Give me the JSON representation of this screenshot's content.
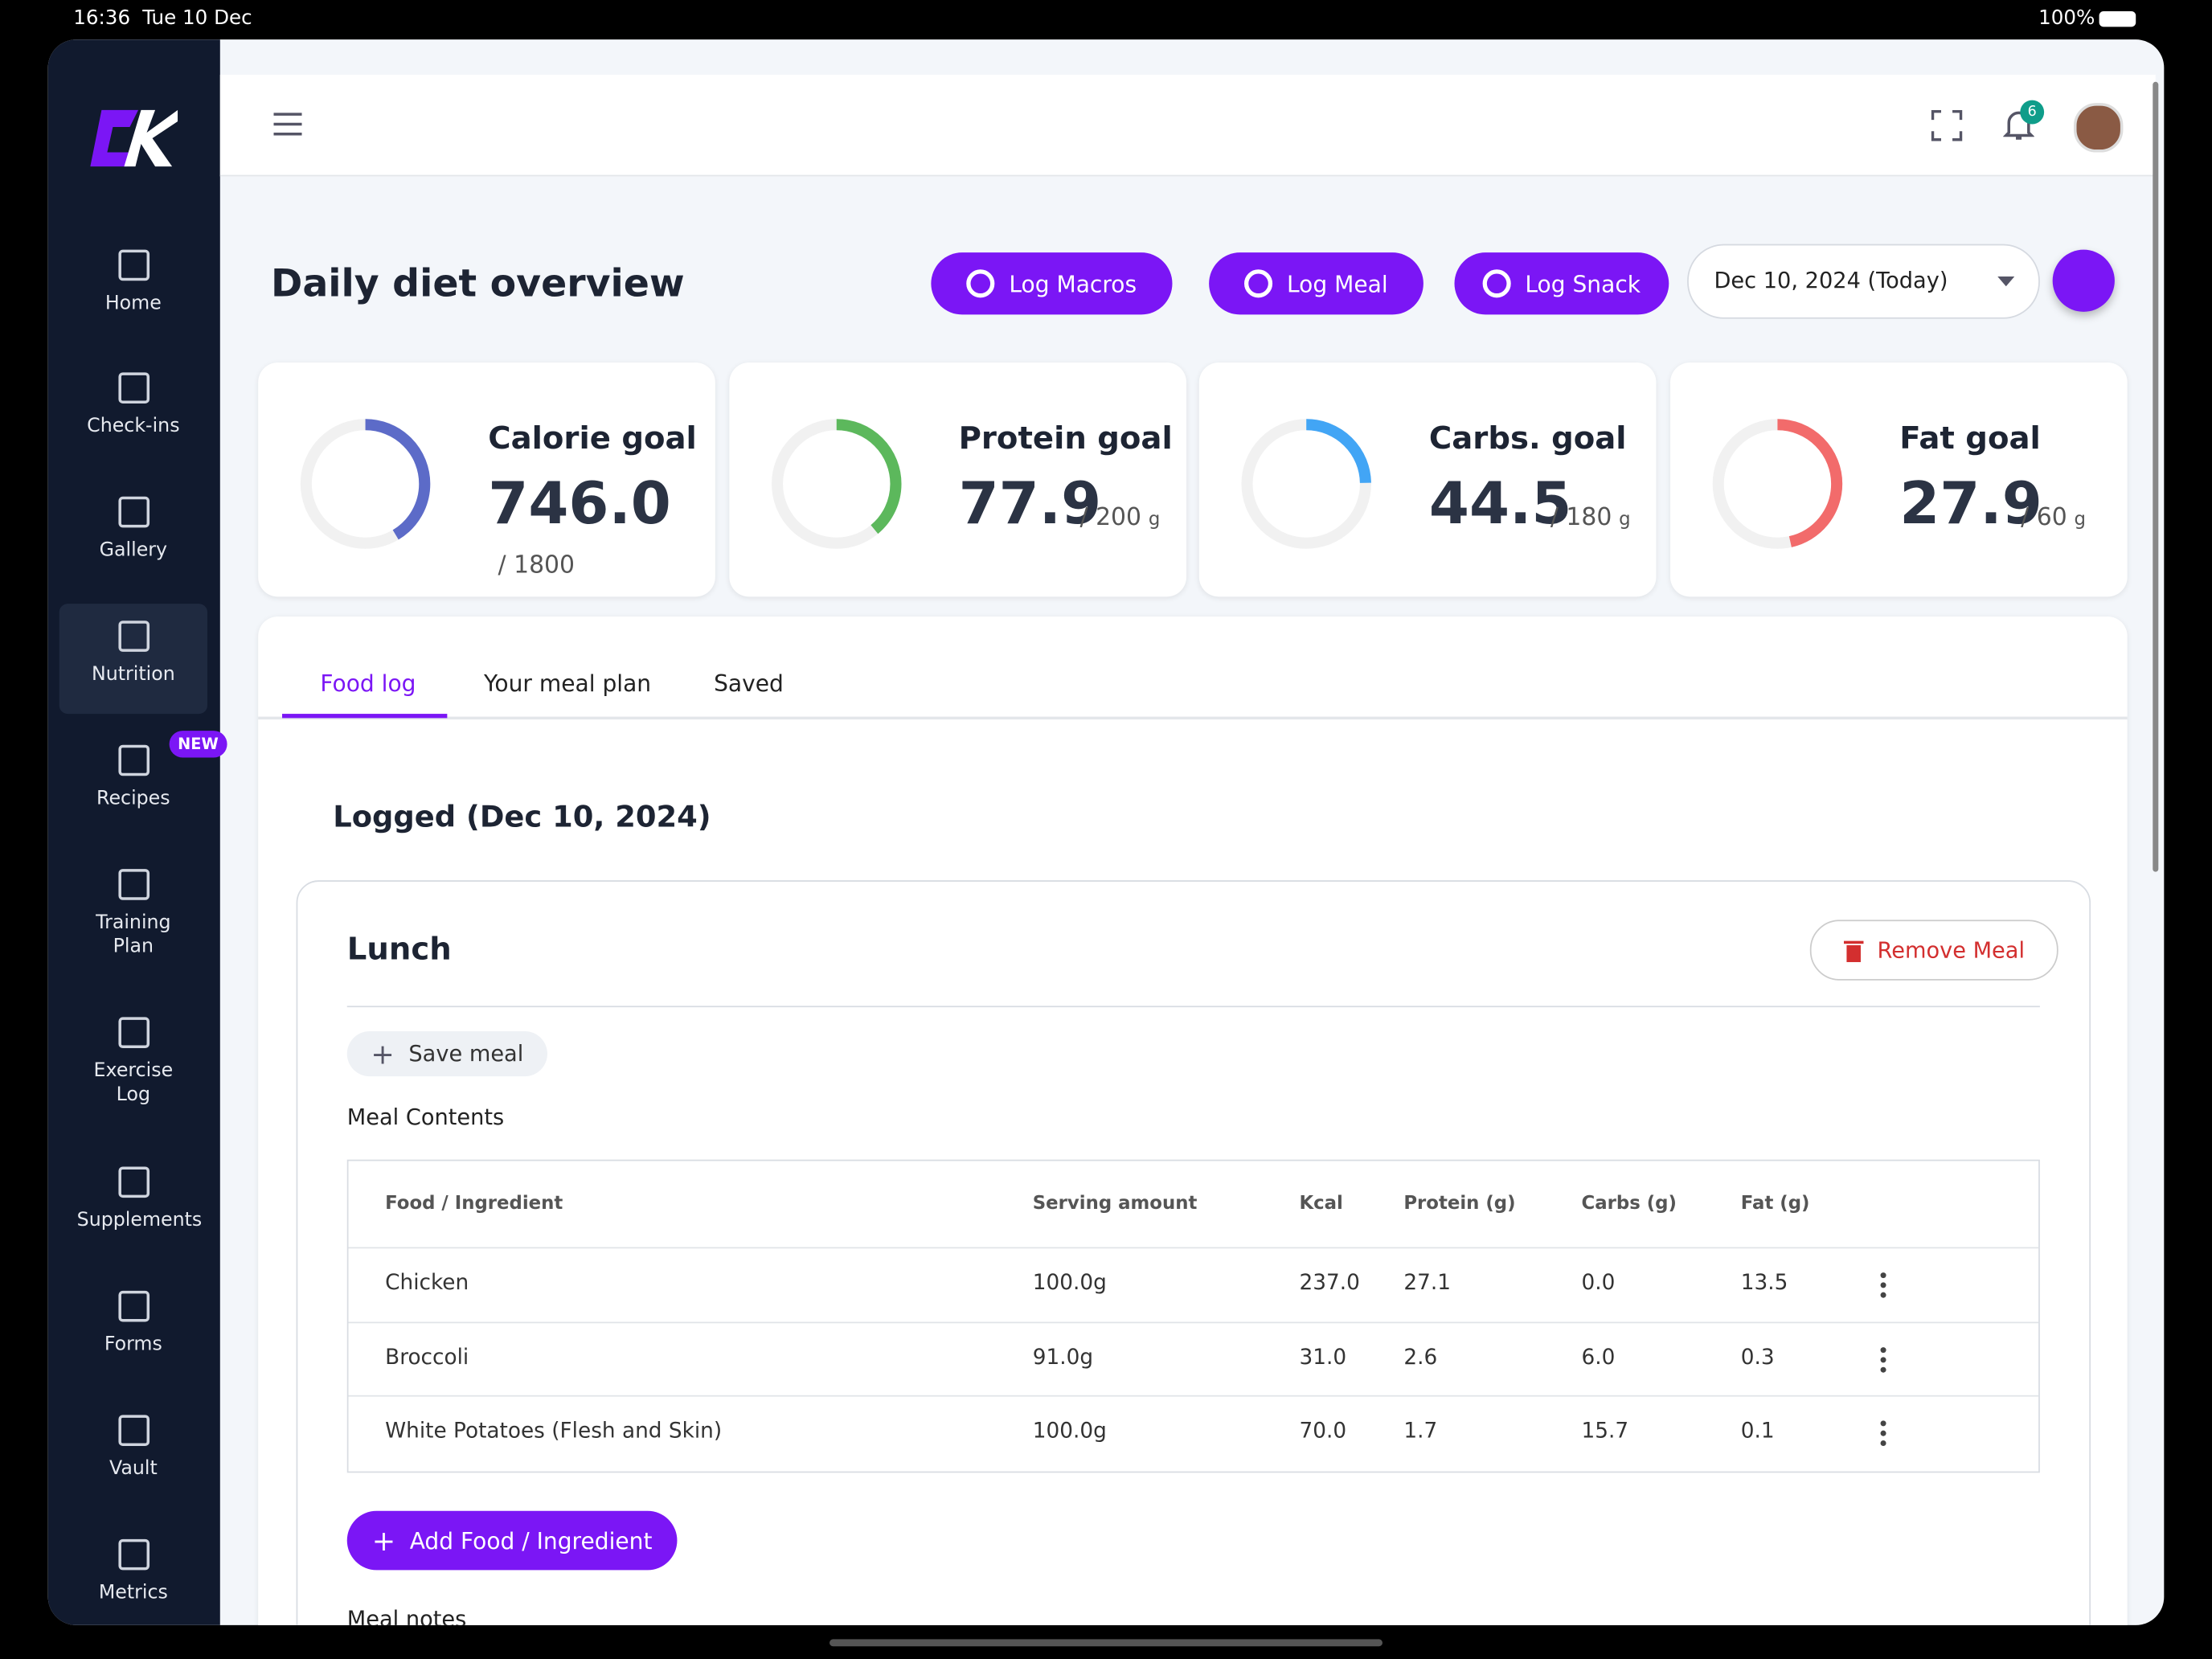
{
  "status": {
    "time": "16:36",
    "date": "Tue 10 Dec",
    "battery": "100%"
  },
  "nav": [
    {
      "label": "Home"
    },
    {
      "label": "Check-ins"
    },
    {
      "label": "Gallery"
    },
    {
      "label": "Nutrition",
      "active": true
    },
    {
      "label": "Recipes",
      "badge": "NEW"
    },
    {
      "label": "Training Plan"
    },
    {
      "label": "Exercise Log"
    },
    {
      "label": "Supplements"
    },
    {
      "label": "Forms"
    },
    {
      "label": "Vault"
    },
    {
      "label": "Metrics"
    }
  ],
  "header": {
    "notifications": "6"
  },
  "page": {
    "title": "Daily diet overview",
    "buttons": [
      "Log Macros",
      "Log Meal",
      "Log Snack"
    ],
    "date_select": "Dec 10, 2024 (Today)"
  },
  "goals": [
    {
      "title": "Calorie goal",
      "value": "746.0",
      "target": "/ 1800",
      "color": "#5c6bc8"
    },
    {
      "title": "Protein goal",
      "value": "77.9",
      "target": "/ 200",
      "unit": "g",
      "color": "#5cb85c"
    },
    {
      "title": "Carbs. goal",
      "value": "44.5",
      "target": "/ 180",
      "unit": "g",
      "color": "#42a5f5"
    },
    {
      "title": "Fat goal",
      "value": "27.9",
      "target": "/ 60",
      "unit": "g",
      "color": "#f26b6b"
    }
  ],
  "tabs": [
    "Food log",
    "Your meal plan",
    "Saved"
  ],
  "log": {
    "title": "Logged (Dec 10, 2024)",
    "meal": {
      "name": "Lunch",
      "remove": "Remove Meal",
      "save": "Save meal",
      "contents": "Meal Contents",
      "table": {
        "columns": [
          "Food / Ingredient",
          "Serving amount",
          "Kcal",
          "Protein (g)",
          "Carbs (g)",
          "Fat (g)"
        ],
        "rows": [
          [
            "Chicken",
            "100.0g",
            "237.0",
            "27.1",
            "0.0",
            "13.5"
          ],
          [
            "Broccoli",
            "91.0g",
            "31.0",
            "2.6",
            "6.0",
            "0.3"
          ],
          [
            "White Potatoes (Flesh and Skin)",
            "100.0g",
            "70.0",
            "1.7",
            "15.7",
            "0.1"
          ]
        ]
      },
      "add": "Add Food / Ingredient",
      "notes": "Meal notes"
    }
  }
}
